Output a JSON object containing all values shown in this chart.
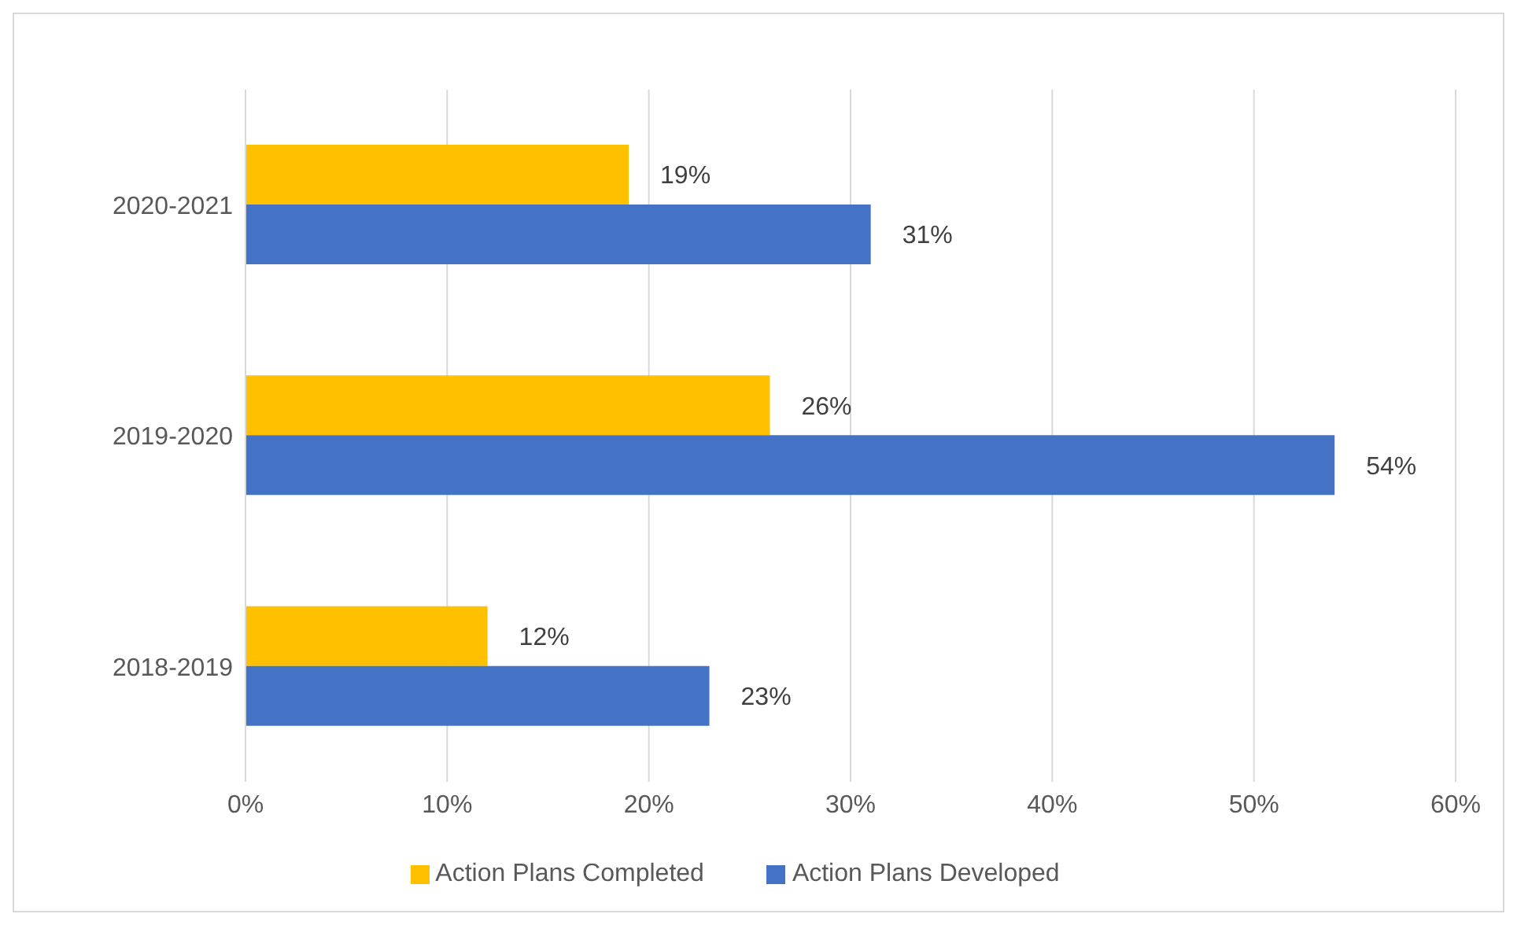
{
  "chart_data": {
    "type": "bar",
    "orientation": "horizontal",
    "categories": [
      "2020-2021",
      "2019-2020",
      "2018-2019"
    ],
    "series": [
      {
        "name": "Action Plans Completed",
        "color": "#ffc000",
        "values": [
          19,
          26,
          12
        ],
        "value_labels": [
          "19%",
          "26%",
          "12%"
        ]
      },
      {
        "name": "Action Plans Developed",
        "color": "#4472c4",
        "values": [
          31,
          54,
          23
        ],
        "value_labels": [
          "31%",
          "54%",
          "23%"
        ]
      }
    ],
    "xlim": [
      0,
      60
    ],
    "xticks": [
      {
        "value": 0,
        "label": "0%"
      },
      {
        "value": 10,
        "label": "10%"
      },
      {
        "value": 20,
        "label": "20%"
      },
      {
        "value": 30,
        "label": "30%"
      },
      {
        "value": 40,
        "label": "40%"
      },
      {
        "value": 50,
        "label": "50%"
      },
      {
        "value": 60,
        "label": "60%"
      }
    ],
    "grid": "x",
    "legend": "bottom"
  }
}
